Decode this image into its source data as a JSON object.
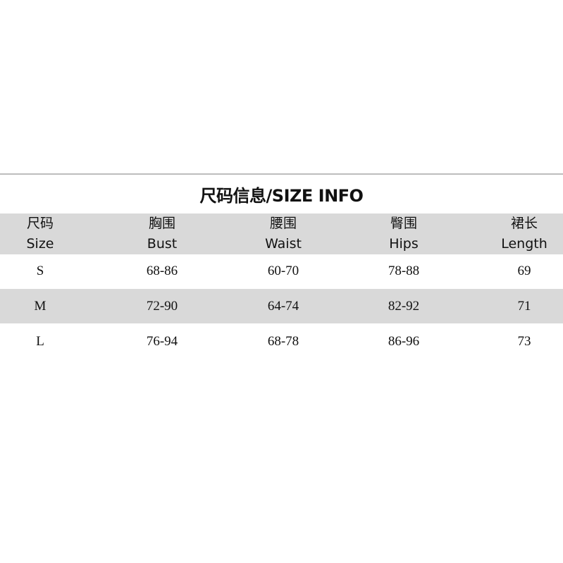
{
  "title": "尺码信息/SIZE INFO",
  "columns": [
    {
      "cn": "尺码",
      "en": "Size"
    },
    {
      "cn": "胸围",
      "en": "Bust"
    },
    {
      "cn": "腰围",
      "en": "Waist"
    },
    {
      "cn": "臀围",
      "en": "Hips"
    },
    {
      "cn": "裙长",
      "en": "Length"
    }
  ],
  "rows": [
    [
      "S",
      "68-86",
      "60-70",
      "78-88",
      "69"
    ],
    [
      "M",
      "72-90",
      "64-74",
      "82-92",
      "71"
    ],
    [
      "L",
      "76-94",
      "68-78",
      "86-96",
      "73"
    ]
  ],
  "colors": {
    "band": "#d9d9d9",
    "rule": "#bdbdbd"
  }
}
